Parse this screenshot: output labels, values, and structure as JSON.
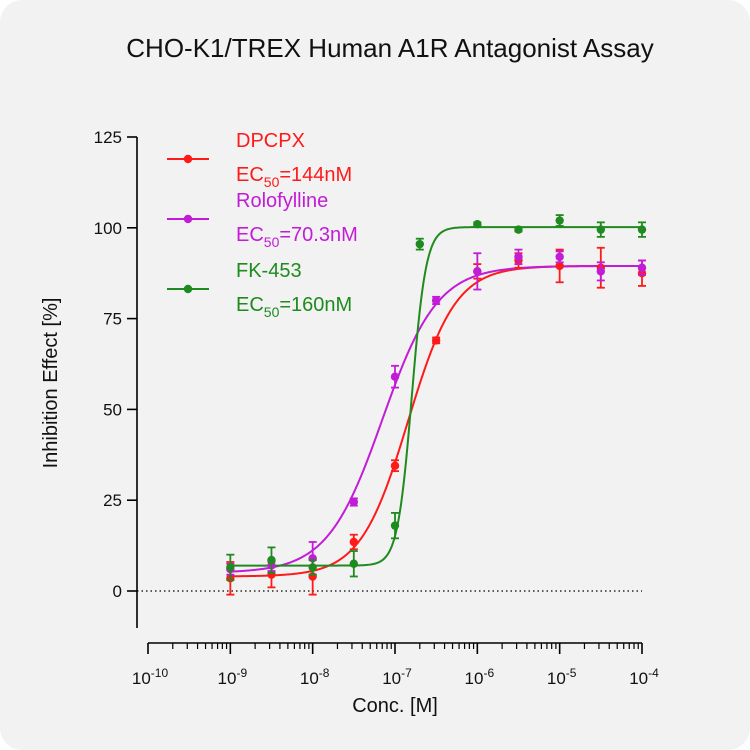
{
  "chart_data": {
    "type": "scatter",
    "title": "CHO-K1/TREX Human A1R Antagonist Assay",
    "xlabel": "Conc. [M]",
    "ylabel": "Inhibition Effect [%]",
    "x_scale": "log",
    "xlim": [
      1e-10,
      0.0001
    ],
    "ylim": [
      -10,
      125
    ],
    "x_ticks": [
      {
        "value": 1e-10,
        "base": "10",
        "exp": "-10"
      },
      {
        "value": 1e-09,
        "base": "10",
        "exp": "-9"
      },
      {
        "value": 1e-08,
        "base": "10",
        "exp": "-8"
      },
      {
        "value": 1e-07,
        "base": "10",
        "exp": "-7"
      },
      {
        "value": 1e-06,
        "base": "10",
        "exp": "-6"
      },
      {
        "value": 1e-05,
        "base": "10",
        "exp": "-5"
      },
      {
        "value": 0.0001,
        "base": "10",
        "exp": "-4"
      }
    ],
    "y_ticks": [
      "0",
      "25",
      "50",
      "75",
      "100",
      "125"
    ],
    "reference_line": {
      "y": 0,
      "style": "dotted"
    },
    "legend_position": "top-left",
    "series": [
      {
        "name": "DPCPX",
        "ec50_prefix": "EC",
        "ec50_sub": "50",
        "ec50_value": "=144nM",
        "color": "#ff1a1a",
        "fit": {
          "bottom": 4,
          "top": 89.5,
          "ec50": 1.44e-07,
          "hill": 1.5
        },
        "points": [
          {
            "x": 1e-09,
            "y": 3.5,
            "err": 4.5
          },
          {
            "x": 3.16e-09,
            "y": 4.5,
            "err": 3.5
          },
          {
            "x": 1e-08,
            "y": 4.0,
            "err": 5.0
          },
          {
            "x": 3.16e-08,
            "y": 13.5,
            "err": 2.0
          },
          {
            "x": 1e-07,
            "y": 34.5,
            "err": 1.5
          },
          {
            "x": 3.16e-07,
            "y": 69.0,
            "err": 0.8
          },
          {
            "x": 1e-06,
            "y": 88.0,
            "err": 2.0
          },
          {
            "x": 3.16e-06,
            "y": 91.0,
            "err": 2.0
          },
          {
            "x": 1e-05,
            "y": 89.5,
            "err": 4.5
          },
          {
            "x": 3.16e-05,
            "y": 89.0,
            "err": 5.5
          },
          {
            "x": 0.0001,
            "y": 87.5,
            "err": 3.5
          }
        ]
      },
      {
        "name": "Rolofylline",
        "ec50_prefix": "EC",
        "ec50_sub": "50",
        "ec50_value": "=70.3nM",
        "color": "#c21cd6",
        "fit": {
          "bottom": 5,
          "top": 89.5,
          "ec50": 7.03e-08,
          "hill": 1.3
        },
        "points": [
          {
            "x": 1e-09,
            "y": 6.0,
            "err": 1.5
          },
          {
            "x": 3.16e-09,
            "y": 7.0,
            "err": 1.5
          },
          {
            "x": 1e-08,
            "y": 9.0,
            "err": 4.5
          },
          {
            "x": 3.16e-08,
            "y": 24.5,
            "err": 1.0
          },
          {
            "x": 1e-07,
            "y": 59.0,
            "err": 3.0
          },
          {
            "x": 3.16e-07,
            "y": 80.0,
            "err": 1.0
          },
          {
            "x": 1e-06,
            "y": 88.0,
            "err": 5.0
          },
          {
            "x": 3.16e-06,
            "y": 92.0,
            "err": 2.0
          },
          {
            "x": 1e-05,
            "y": 92.0,
            "err": 1.5
          },
          {
            "x": 3.16e-05,
            "y": 88.0,
            "err": 2.5
          },
          {
            "x": 0.0001,
            "y": 89.0,
            "err": 2.0
          }
        ]
      },
      {
        "name": "FK-453",
        "ec50_prefix": "EC",
        "ec50_sub": "50",
        "ec50_value": "=160nM",
        "color": "#1f8a1f",
        "fit": {
          "bottom": 7,
          "top": 100.2,
          "ec50": 1.6e-07,
          "hill": 5.0
        },
        "points": [
          {
            "x": 1e-09,
            "y": 6.5,
            "err": 3.5
          },
          {
            "x": 3.16e-09,
            "y": 8.5,
            "err": 3.5
          },
          {
            "x": 1e-08,
            "y": 6.5,
            "err": 2.0
          },
          {
            "x": 3.16e-08,
            "y": 7.5,
            "err": 3.5
          },
          {
            "x": 1e-07,
            "y": 18.0,
            "err": 3.5
          },
          {
            "x": 2e-07,
            "y": 95.5,
            "err": 1.5
          },
          {
            "x": 1e-06,
            "y": 101.0,
            "err": 0.5
          },
          {
            "x": 3.16e-06,
            "y": 99.5,
            "err": 0.5
          },
          {
            "x": 1e-05,
            "y": 102.0,
            "err": 1.5
          },
          {
            "x": 3.16e-05,
            "y": 99.5,
            "err": 2.0
          },
          {
            "x": 0.0001,
            "y": 99.5,
            "err": 2.0
          }
        ]
      }
    ]
  }
}
